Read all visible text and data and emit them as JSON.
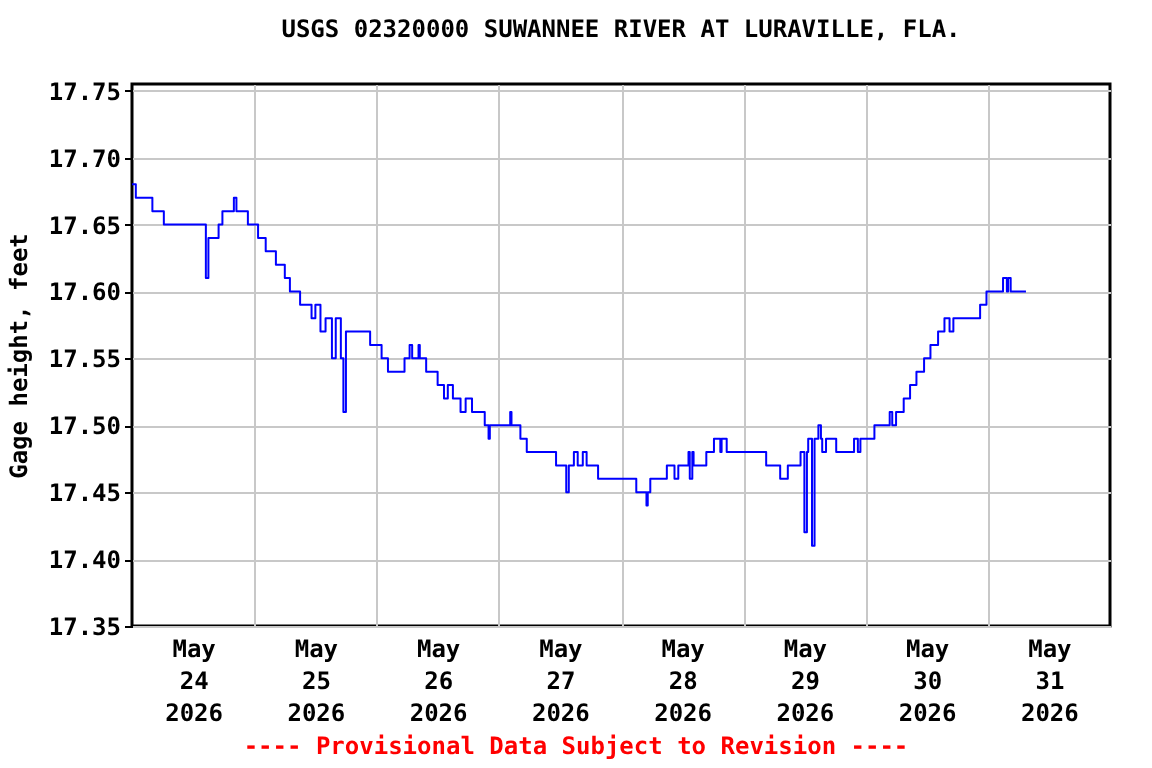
{
  "chart_data": {
    "type": "step",
    "title": "USGS 02320000 SUWANNEE RIVER AT LURAVILLE, FLA.",
    "ylabel": "Gage height, feet",
    "annotations": [
      "---- Provisional Data Subject to Revision ----"
    ],
    "xlim": [
      "2026-05-24T00:00",
      "2026-06-01T00:00"
    ],
    "xticks": [
      {
        "value": "2026-05-24T12:00",
        "label": "May 24 2026"
      },
      {
        "value": "2026-05-25T00:00",
        "label": null
      },
      {
        "value": "2026-05-25T12:00",
        "label": "May 25 2026"
      },
      {
        "value": "2026-05-26T00:00",
        "label": null
      },
      {
        "value": "2026-05-26T12:00",
        "label": "May 26 2026"
      },
      {
        "value": "2026-05-27T00:00",
        "label": null
      },
      {
        "value": "2026-05-27T12:00",
        "label": "May 27 2026"
      },
      {
        "value": "2026-05-28T00:00",
        "label": null
      },
      {
        "value": "2026-05-28T12:00",
        "label": "May 28 2026"
      },
      {
        "value": "2026-05-29T00:00",
        "label": null
      },
      {
        "value": "2026-05-29T12:00",
        "label": "May 29 2026"
      },
      {
        "value": "2026-05-30T00:00",
        "label": null
      },
      {
        "value": "2026-05-30T12:00",
        "label": "May 30 2026"
      },
      {
        "value": "2026-05-31T00:00",
        "label": null
      },
      {
        "value": "2026-05-31T12:00",
        "label": "May 31 2026"
      }
    ],
    "ylim": [
      17.35,
      17.755
    ],
    "yticks": [
      {
        "value": 17.35,
        "label": "17.35"
      },
      {
        "value": 17.4,
        "label": "17.40"
      },
      {
        "value": 17.45,
        "label": "17.45"
      },
      {
        "value": 17.5,
        "label": "17.50"
      },
      {
        "value": 17.55,
        "label": "17.55"
      },
      {
        "value": 17.6,
        "label": "17.60"
      },
      {
        "value": 17.65,
        "label": "17.65"
      },
      {
        "value": 17.7,
        "label": "17.70"
      },
      {
        "value": 17.75,
        "label": "17.75"
      }
    ],
    "grid": true,
    "series": [
      {
        "color": "#0000ff",
        "x": [
          "2026-05-24T00:00",
          "2026-05-24T00:45",
          "2026-05-24T04:00",
          "2026-05-24T06:15",
          "2026-05-24T14:30",
          "2026-05-24T15:00",
          "2026-05-24T17:00",
          "2026-05-24T17:45",
          "2026-05-24T20:00",
          "2026-05-24T20:30",
          "2026-05-24T22:45",
          "2026-05-25T00:45",
          "2026-05-25T02:15",
          "2026-05-25T04:15",
          "2026-05-25T06:00",
          "2026-05-25T07:00",
          "2026-05-25T09:00",
          "2026-05-25T11:15",
          "2026-05-25T12:00",
          "2026-05-25T13:00",
          "2026-05-25T14:00",
          "2026-05-25T15:15",
          "2026-05-25T16:00",
          "2026-05-25T17:00",
          "2026-05-25T17:30",
          "2026-05-25T18:00",
          "2026-05-25T22:45",
          "2026-05-26T01:00",
          "2026-05-26T02:15",
          "2026-05-26T05:30",
          "2026-05-26T06:30",
          "2026-05-26T07:00",
          "2026-05-26T08:15",
          "2026-05-26T08:30",
          "2026-05-26T09:45",
          "2026-05-26T12:00",
          "2026-05-26T13:15",
          "2026-05-26T14:00",
          "2026-05-26T15:00",
          "2026-05-26T16:30",
          "2026-05-26T17:30",
          "2026-05-26T18:45",
          "2026-05-26T21:15",
          "2026-05-26T22:00",
          "2026-05-26T22:15",
          "2026-05-27T02:15",
          "2026-05-27T02:30",
          "2026-05-27T04:15",
          "2026-05-27T05:30",
          "2026-05-27T11:15",
          "2026-05-27T13:15",
          "2026-05-27T13:45",
          "2026-05-27T14:45",
          "2026-05-27T15:30",
          "2026-05-27T16:30",
          "2026-05-27T17:15",
          "2026-05-27T19:30",
          "2026-05-28T03:00",
          "2026-05-28T05:00",
          "2026-05-28T05:15",
          "2026-05-28T05:45",
          "2026-05-28T09:00",
          "2026-05-28T10:30",
          "2026-05-28T11:15",
          "2026-05-28T13:15",
          "2026-05-28T13:30",
          "2026-05-28T14:00",
          "2026-05-28T14:15",
          "2026-05-28T16:45",
          "2026-05-28T18:15",
          "2026-05-28T19:30",
          "2026-05-28T19:45",
          "2026-05-28T20:45",
          "2026-05-29T04:30",
          "2026-05-29T07:15",
          "2026-05-29T08:45",
          "2026-05-29T11:15",
          "2026-05-29T12:00",
          "2026-05-29T12:30",
          "2026-05-29T12:45",
          "2026-05-29T13:30",
          "2026-05-29T14:00",
          "2026-05-29T14:45",
          "2026-05-29T15:15",
          "2026-05-29T15:30",
          "2026-05-29T16:15",
          "2026-05-29T18:15",
          "2026-05-29T21:45",
          "2026-05-29T22:30",
          "2026-05-29T23:00",
          "2026-05-30T01:45",
          "2026-05-30T04:45",
          "2026-05-30T05:15",
          "2026-05-30T06:00",
          "2026-05-30T07:30",
          "2026-05-30T08:45",
          "2026-05-30T10:00",
          "2026-05-30T11:30",
          "2026-05-30T12:45",
          "2026-05-30T14:15",
          "2026-05-30T15:30",
          "2026-05-30T16:30",
          "2026-05-30T17:15",
          "2026-05-30T22:30",
          "2026-05-30T23:45",
          "2026-05-31T03:00",
          "2026-05-31T03:45",
          "2026-05-31T04:00",
          "2026-05-31T04:30",
          "2026-05-31T07:30"
        ],
        "values": [
          17.68,
          17.67,
          17.66,
          17.65,
          17.61,
          17.64,
          17.65,
          17.66,
          17.67,
          17.66,
          17.65,
          17.64,
          17.63,
          17.62,
          17.61,
          17.6,
          17.59,
          17.58,
          17.59,
          17.57,
          17.58,
          17.55,
          17.58,
          17.55,
          17.51,
          17.57,
          17.56,
          17.55,
          17.54,
          17.55,
          17.56,
          17.55,
          17.56,
          17.55,
          17.54,
          17.53,
          17.52,
          17.53,
          17.52,
          17.51,
          17.52,
          17.51,
          17.5,
          17.49,
          17.5,
          17.51,
          17.5,
          17.49,
          17.48,
          17.47,
          17.45,
          17.47,
          17.48,
          17.47,
          17.48,
          17.47,
          17.46,
          17.45,
          17.44,
          17.45,
          17.46,
          17.47,
          17.46,
          17.47,
          17.48,
          17.46,
          17.48,
          17.47,
          17.48,
          17.49,
          17.48,
          17.49,
          17.48,
          17.47,
          17.46,
          17.47,
          17.48,
          17.42,
          17.48,
          17.49,
          17.41,
          17.49,
          17.5,
          17.49,
          17.48,
          17.49,
          17.48,
          17.49,
          17.48,
          17.49,
          17.5,
          17.51,
          17.5,
          17.51,
          17.52,
          17.53,
          17.54,
          17.55,
          17.56,
          17.57,
          17.58,
          17.57,
          17.58,
          17.59,
          17.6,
          17.61,
          17.6,
          17.61,
          17.6,
          17.6
        ]
      }
    ]
  }
}
